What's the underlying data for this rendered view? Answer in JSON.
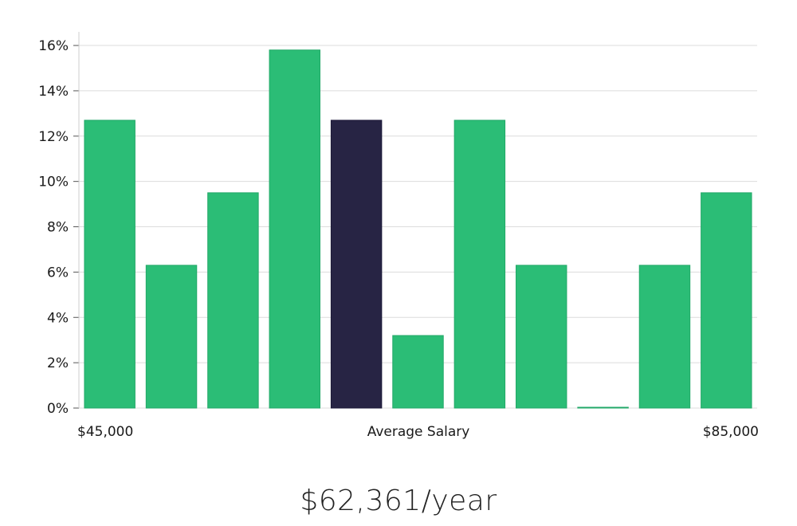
{
  "chart_data": {
    "type": "bar",
    "values": [
      12.7,
      6.3,
      9.5,
      15.8,
      12.7,
      3.2,
      12.7,
      6.3,
      0,
      6.3,
      9.5
    ],
    "highlight_index": 4,
    "x_labels": {
      "min": "$45,000",
      "center": "Average Salary",
      "max": "$85,000"
    },
    "y_ticks": [
      {
        "value": 0,
        "label": "0%"
      },
      {
        "value": 2,
        "label": "2%"
      },
      {
        "value": 4,
        "label": "4%"
      },
      {
        "value": 6,
        "label": "6%"
      },
      {
        "value": 8,
        "label": "8%"
      },
      {
        "value": 10,
        "label": "10%"
      },
      {
        "value": 12,
        "label": "12%"
      },
      {
        "value": 14,
        "label": "14%"
      },
      {
        "value": 16,
        "label": "16%"
      }
    ],
    "ylim": [
      0,
      16.6
    ],
    "grid": true,
    "colors": {
      "bar": "#2bbd76",
      "bar_edge": "#22a868",
      "highlight": "#272444",
      "grid": "#dcdcdc",
      "axis": "#cccccc"
    }
  },
  "summary": {
    "salary_text": "$62,361/year"
  }
}
